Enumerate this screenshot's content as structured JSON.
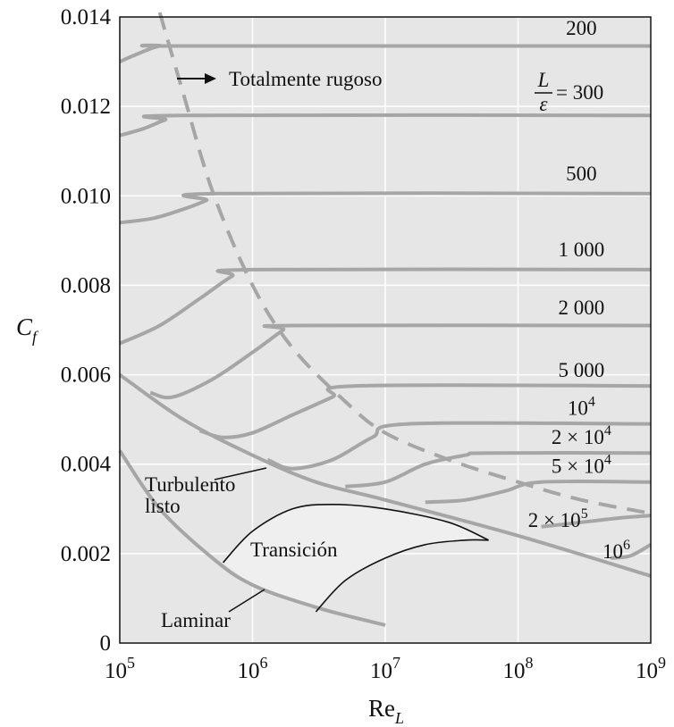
{
  "chart_data": {
    "type": "line",
    "xscale": "log",
    "xlim": [
      100000,
      1000000000
    ],
    "ylim": [
      0,
      0.014
    ],
    "grid": true,
    "colors": {
      "plot_bg": "#e6e6e6",
      "curve": "#a6a6a6",
      "grid": "#ffffff",
      "transition_fill": "#efefef"
    },
    "xlabel": {
      "main": "Re",
      "sub": "L"
    },
    "ylabel": {
      "main": "C",
      "sub": "f"
    },
    "x_ticks": [
      {
        "value": 100000,
        "base": "10",
        "exp": "5"
      },
      {
        "value": 1000000,
        "base": "10",
        "exp": "6"
      },
      {
        "value": 10000000,
        "base": "10",
        "exp": "7"
      },
      {
        "value": 100000000,
        "base": "10",
        "exp": "8"
      },
      {
        "value": 1000000000,
        "base": "10",
        "exp": "9"
      }
    ],
    "y_ticks": [
      {
        "value": 0,
        "label": "0"
      },
      {
        "value": 0.002,
        "label": "0.002"
      },
      {
        "value": 0.004,
        "label": "0.004"
      },
      {
        "value": 0.006,
        "label": "0.006"
      },
      {
        "value": 0.008,
        "label": "0.008"
      },
      {
        "value": 0.01,
        "label": "0.010"
      },
      {
        "value": 0.012,
        "label": "0.012"
      },
      {
        "value": 0.014,
        "label": "0.014"
      }
    ],
    "series": [
      {
        "name": "200",
        "points": [
          [
            100000,
            0.013
          ],
          [
            130000,
            0.01315
          ],
          [
            200000,
            0.01335
          ],
          [
            300000,
            0.01335
          ],
          [
            1000000000,
            0.01335
          ]
        ]
      },
      {
        "name": "300",
        "points": [
          [
            100000,
            0.01135
          ],
          [
            150000,
            0.0115
          ],
          [
            220000,
            0.0117
          ],
          [
            300000,
            0.0118
          ],
          [
            1000000000,
            0.0118
          ]
        ]
      },
      {
        "name": "500",
        "points": [
          [
            100000,
            0.0094
          ],
          [
            180000,
            0.0095
          ],
          [
            300000,
            0.0097
          ],
          [
            450000,
            0.0099
          ],
          [
            550000,
            0.01005
          ],
          [
            1000000000,
            0.01005
          ]
        ]
      },
      {
        "name": "1 000",
        "points": [
          [
            100000,
            0.0067
          ],
          [
            200000,
            0.0071
          ],
          [
            400000,
            0.0077
          ],
          [
            700000,
            0.0082
          ],
          [
            1000000,
            0.00835
          ],
          [
            1000000000,
            0.00835
          ]
        ]
      },
      {
        "name": "2 000",
        "points": [
          [
            170000,
            0.0056
          ],
          [
            250000,
            0.0055
          ],
          [
            500000,
            0.0059
          ],
          [
            1000000,
            0.0065
          ],
          [
            1700000,
            0.007
          ],
          [
            2000000,
            0.0071
          ],
          [
            1000000000,
            0.0071
          ]
        ]
      },
      {
        "name": "5 000",
        "points": [
          [
            400000,
            0.00475
          ],
          [
            600000,
            0.0046
          ],
          [
            1000000,
            0.0047
          ],
          [
            2000000,
            0.0051
          ],
          [
            4000000,
            0.0055
          ],
          [
            6000000,
            0.00575
          ],
          [
            1000000000,
            0.00575
          ]
        ]
      },
      {
        "name": "10^4",
        "points": [
          [
            1300000,
            0.0041
          ],
          [
            2000000,
            0.0039
          ],
          [
            4000000,
            0.0041
          ],
          [
            8000000,
            0.0046
          ],
          [
            15000000,
            0.0049
          ],
          [
            1000000000,
            0.0049
          ]
        ]
      },
      {
        "name": "2 × 10^4",
        "points": [
          [
            5000000,
            0.0035
          ],
          [
            10000000,
            0.0036
          ],
          [
            20000000,
            0.004
          ],
          [
            40000000,
            0.0042
          ],
          [
            60000000,
            0.00425
          ],
          [
            1000000000,
            0.00425
          ]
        ]
      },
      {
        "name": "5 × 10^4",
        "points": [
          [
            20000000,
            0.00315
          ],
          [
            40000000,
            0.0032
          ],
          [
            80000000,
            0.0034
          ],
          [
            150000000,
            0.0036
          ],
          [
            1000000000,
            0.0036
          ]
        ]
      },
      {
        "name": "2 × 10^5",
        "points": [
          [
            150000000,
            0.0026
          ],
          [
            300000000,
            0.0027
          ],
          [
            600000000,
            0.0028
          ],
          [
            1000000000,
            0.00285
          ]
        ]
      },
      {
        "name": "10^6",
        "points": [
          [
            500000000,
            0.0019
          ],
          [
            700000000,
            0.00195
          ],
          [
            1000000000,
            0.0022
          ]
        ]
      },
      {
        "name": "Turbulento listo",
        "points": [
          [
            100000,
            0.006
          ],
          [
            300000,
            0.005
          ],
          [
            1000000,
            0.0042
          ],
          [
            3000000,
            0.0036
          ],
          [
            10000000,
            0.0032
          ],
          [
            100000000,
            0.0024
          ],
          [
            1000000000,
            0.0015
          ]
        ]
      },
      {
        "name": "Laminar",
        "points": [
          [
            100000,
            0.0043
          ],
          [
            200000,
            0.003
          ],
          [
            500000,
            0.0019
          ],
          [
            1000000,
            0.0013
          ],
          [
            3000000,
            0.0008
          ],
          [
            10000000,
            0.0004
          ]
        ]
      },
      {
        "name": "Totalmente rugoso",
        "style": "dashed",
        "points": [
          [
            200000,
            0.0141
          ],
          [
            300000,
            0.0123
          ],
          [
            500000,
            0.0101
          ],
          [
            1000000,
            0.008
          ],
          [
            2000000,
            0.0066
          ],
          [
            5000000,
            0.0054
          ],
          [
            10000000,
            0.0047
          ],
          [
            30000000,
            0.0041
          ],
          [
            100000000,
            0.0036
          ],
          [
            300000000,
            0.0032
          ],
          [
            1000000000,
            0.0029
          ]
        ]
      }
    ],
    "transition_boundaries": {
      "upper": [
        [
          600000,
          0.0018
        ],
        [
          1000000,
          0.0025
        ],
        [
          2000000,
          0.003
        ],
        [
          4000000,
          0.0031
        ],
        [
          10000000,
          0.003
        ],
        [
          30000000,
          0.0027
        ],
        [
          60000000,
          0.0023
        ]
      ],
      "lower": [
        [
          3000000,
          0.0007
        ],
        [
          5000000,
          0.0014
        ],
        [
          10000000,
          0.0019
        ],
        [
          20000000,
          0.0022
        ],
        [
          40000000,
          0.0023
        ],
        [
          60000000,
          0.0023
        ]
      ]
    },
    "curve_labels": [
      {
        "id": "200",
        "parts": [
          {
            "t": "200"
          }
        ],
        "x": 300000000,
        "y": 0.0136
      },
      {
        "id": "500",
        "parts": [
          {
            "t": "500"
          }
        ],
        "x": 300000000,
        "y": 0.01035
      },
      {
        "id": "1000",
        "parts": [
          {
            "t": "1 000"
          }
        ],
        "x": 300000000,
        "y": 0.00865
      },
      {
        "id": "2000",
        "parts": [
          {
            "t": "2 000"
          }
        ],
        "x": 300000000,
        "y": 0.00735
      },
      {
        "id": "5000",
        "parts": [
          {
            "t": "5 000"
          }
        ],
        "x": 300000000,
        "y": 0.00595
      },
      {
        "id": "1e4",
        "parts": [
          {
            "t": "10"
          },
          {
            "t": "4",
            "sup": true
          }
        ],
        "x": 300000000,
        "y": 0.0051
      },
      {
        "id": "2e4",
        "parts": [
          {
            "t": "2 × 10"
          },
          {
            "t": "4",
            "sup": true
          }
        ],
        "x": 300000000,
        "y": 0.00445
      },
      {
        "id": "5e4",
        "parts": [
          {
            "t": "5 × 10"
          },
          {
            "t": "4",
            "sup": true
          }
        ],
        "x": 300000000,
        "y": 0.0038
      },
      {
        "id": "2e5",
        "parts": [
          {
            "t": "2 × 10"
          },
          {
            "t": "5",
            "sup": true
          }
        ],
        "x": 200000000,
        "y": 0.0026
      },
      {
        "id": "1e6",
        "parts": [
          {
            "t": "10"
          },
          {
            "t": "6",
            "sup": true
          }
        ],
        "x": 550000000,
        "y": 0.0019
      }
    ],
    "ratio_label": {
      "num": "L",
      "den": "ε",
      "eq": "= 300"
    },
    "annotations": {
      "totalmente_rugoso": "Totalmente rugoso",
      "turbulento_line1": "Turbulento",
      "turbulento_line2": "listo",
      "transicion": "Transición",
      "laminar": "Laminar"
    }
  }
}
